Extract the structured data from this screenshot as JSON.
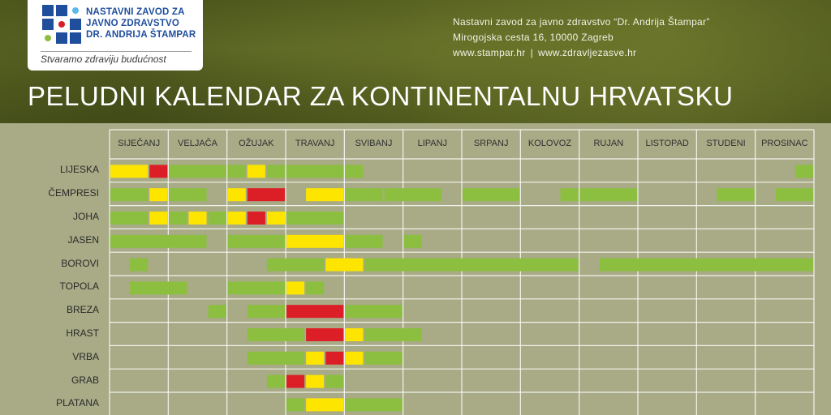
{
  "header": {
    "logo_lines": [
      "NASTAVNI ZAVOD ZA",
      "JAVNO ZDRAVSTVO",
      "DR. ANDRIJA ŠTAMPAR"
    ],
    "slogan": "Stvaramo zdraviju budućnost",
    "contact_name": "Nastavni zavod za javno zdravstvo “Dr. Andrija Štampar”",
    "contact_address": "Mirogojska cesta 16, 10000 Zagreb",
    "link_1": "www.stampar.hr",
    "link_sep": "|",
    "link_2": "www.zdravljezasve.hr"
  },
  "title": "PELUDNI KALENDAR ZA KONTINENTALNU HRVATSKU",
  "colors": {
    "green": "#8cbf3f",
    "yellow": "#fde500",
    "red": "#dc1f26",
    "grid_line": "#ffffff",
    "logo_blue": "#1f4e9c"
  },
  "chart_data": {
    "type": "table",
    "months": [
      "SIJEČANJ",
      "VELJAČA",
      "OŽUJAK",
      "TRAVANJ",
      "SVIBANJ",
      "LIPANJ",
      "SRPANJ",
      "KOLOVOZ",
      "RUJAN",
      "LISTOPAD",
      "STUDENI",
      "PROSINAC"
    ],
    "subdivisions_per_month": 3,
    "level_legend": {
      "g": "green",
      "y": "yellow",
      "r": "red"
    },
    "rows": [
      {
        "name": "LIJESKA",
        "segments": [
          [
            0,
            2,
            "y"
          ],
          [
            2,
            3,
            "r"
          ],
          [
            3,
            6,
            "g"
          ],
          [
            6,
            7,
            "g"
          ],
          [
            7,
            8,
            "y"
          ],
          [
            8,
            9,
            "g"
          ],
          [
            9,
            12,
            "g"
          ],
          [
            12,
            13,
            "g"
          ],
          [
            35,
            36,
            "g"
          ]
        ]
      },
      {
        "name": "ČEMPRESI",
        "segments": [
          [
            0,
            2,
            "g"
          ],
          [
            2,
            3,
            "y"
          ],
          [
            3,
            5,
            "g"
          ],
          [
            6,
            7,
            "y"
          ],
          [
            7,
            9,
            "r"
          ],
          [
            10,
            12,
            "y"
          ],
          [
            12,
            14,
            "g"
          ],
          [
            14,
            17,
            "g"
          ],
          [
            18,
            21,
            "g"
          ],
          [
            23,
            24,
            "g"
          ],
          [
            24,
            27,
            "g"
          ],
          [
            31,
            33,
            "g"
          ],
          [
            34,
            36,
            "g"
          ]
        ]
      },
      {
        "name": "JOHA",
        "segments": [
          [
            0,
            2,
            "g"
          ],
          [
            2,
            3,
            "y"
          ],
          [
            3,
            4,
            "g"
          ],
          [
            4,
            5,
            "y"
          ],
          [
            5,
            6,
            "g"
          ],
          [
            6,
            7,
            "y"
          ],
          [
            7,
            8,
            "r"
          ],
          [
            8,
            9,
            "y"
          ],
          [
            9,
            12,
            "g"
          ]
        ]
      },
      {
        "name": "JASEN",
        "segments": [
          [
            0,
            5,
            "g"
          ],
          [
            6,
            9,
            "g"
          ],
          [
            9,
            12,
            "y"
          ],
          [
            12,
            14,
            "g"
          ],
          [
            15,
            16,
            "g"
          ]
        ]
      },
      {
        "name": "BOROVI",
        "segments": [
          [
            1,
            2,
            "g"
          ],
          [
            8,
            11,
            "g"
          ],
          [
            11,
            13,
            "y"
          ],
          [
            13,
            24,
            "g"
          ],
          [
            25,
            36,
            "g"
          ]
        ]
      },
      {
        "name": "TOPOLA",
        "segments": [
          [
            1,
            4,
            "g"
          ],
          [
            6,
            9,
            "g"
          ],
          [
            9,
            10,
            "y"
          ],
          [
            10,
            11,
            "g"
          ]
        ]
      },
      {
        "name": "BREZA",
        "segments": [
          [
            5,
            6,
            "g"
          ],
          [
            7,
            9,
            "g"
          ],
          [
            9,
            12,
            "r"
          ],
          [
            12,
            15,
            "g"
          ]
        ]
      },
      {
        "name": "HRAST",
        "segments": [
          [
            7,
            10,
            "g"
          ],
          [
            10,
            12,
            "r"
          ],
          [
            12,
            13,
            "y"
          ],
          [
            13,
            16,
            "g"
          ]
        ]
      },
      {
        "name": "VRBA",
        "segments": [
          [
            7,
            10,
            "g"
          ],
          [
            10,
            11,
            "y"
          ],
          [
            11,
            12,
            "r"
          ],
          [
            12,
            13,
            "y"
          ],
          [
            13,
            15,
            "g"
          ]
        ]
      },
      {
        "name": "GRAB",
        "segments": [
          [
            8,
            9,
            "g"
          ],
          [
            9,
            10,
            "r"
          ],
          [
            10,
            11,
            "y"
          ],
          [
            11,
            12,
            "g"
          ]
        ]
      },
      {
        "name": "PLATANA",
        "segments": [
          [
            9,
            10,
            "g"
          ],
          [
            10,
            12,
            "y"
          ],
          [
            12,
            15,
            "g"
          ]
        ]
      }
    ]
  }
}
